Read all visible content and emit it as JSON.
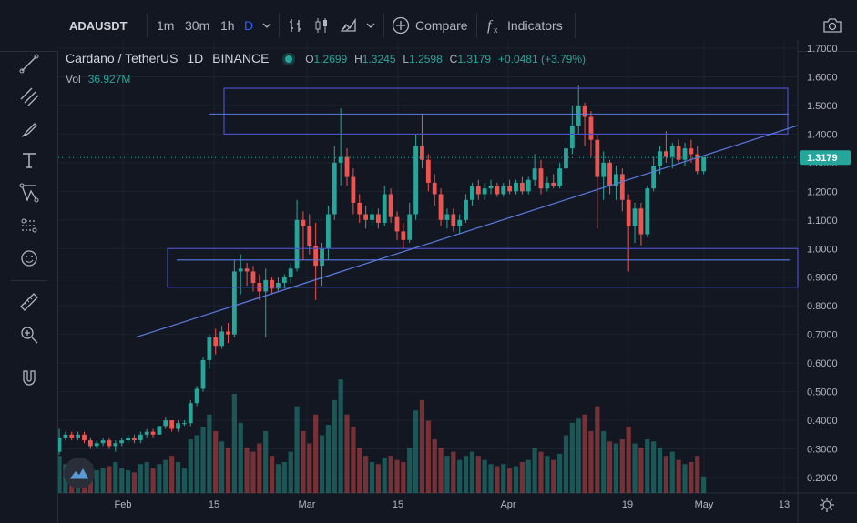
{
  "toolbar": {
    "symbol": "ADAUSDT",
    "timeframes": [
      "1m",
      "30m",
      "1h",
      "D"
    ],
    "active_timeframe": "D",
    "compare_label": "Compare",
    "indicators_label": "Indicators"
  },
  "legend": {
    "title": "Cardano / TetherUS",
    "interval": "1D",
    "exchange": "BINANCE",
    "open_key": "O",
    "open": "1.2699",
    "high_key": "H",
    "high": "1.3245",
    "low_key": "L",
    "low": "1.2598",
    "close_key": "C",
    "close": "1.3179",
    "change": "+0.0481 (+3.79%)",
    "volume_label": "Vol",
    "volume_value": "36.927M"
  },
  "left_tools": [
    "crosshair-icon",
    "trend-line-icon",
    "fib-icon",
    "brush-icon",
    "text-icon",
    "pattern-icon",
    "prediction-icon",
    "emoji-icon",
    "ruler-icon",
    "zoom-icon",
    "magnet-icon"
  ],
  "colors": {
    "background": "#131722",
    "up": "#26a69a",
    "down": "#ef5350",
    "drawing": "#5b7ae0",
    "box": "#4a4fc4"
  },
  "chart_data": {
    "type": "candlestick",
    "y_ticks": [
      "1.7000",
      "1.6000",
      "1.5000",
      "1.4000",
      "1.3000",
      "1.2000",
      "1.1000",
      "1.0000",
      "0.9000",
      "0.8000",
      "0.7000",
      "0.6000",
      "0.5000",
      "0.4000",
      "0.3000",
      "0.2000"
    ],
    "x_ticks": [
      "Feb",
      "15",
      "Mar",
      "15",
      "Apr",
      "19",
      "May",
      "13"
    ],
    "last_price": "1.3179",
    "ylim": [
      0.16,
      1.74
    ],
    "candles": [
      [
        0.29,
        0.37,
        0.28,
        0.34,
        18
      ],
      [
        0.34,
        0.36,
        0.33,
        0.35,
        14
      ],
      [
        0.35,
        0.36,
        0.33,
        0.34,
        13
      ],
      [
        0.34,
        0.36,
        0.33,
        0.35,
        15
      ],
      [
        0.35,
        0.36,
        0.32,
        0.33,
        12
      ],
      [
        0.33,
        0.34,
        0.3,
        0.31,
        14
      ],
      [
        0.31,
        0.33,
        0.3,
        0.32,
        11
      ],
      [
        0.32,
        0.34,
        0.31,
        0.33,
        12
      ],
      [
        0.33,
        0.34,
        0.3,
        0.31,
        13
      ],
      [
        0.31,
        0.33,
        0.29,
        0.32,
        15
      ],
      [
        0.32,
        0.34,
        0.31,
        0.33,
        12
      ],
      [
        0.33,
        0.35,
        0.32,
        0.34,
        11
      ],
      [
        0.34,
        0.35,
        0.32,
        0.33,
        10
      ],
      [
        0.33,
        0.36,
        0.32,
        0.35,
        14
      ],
      [
        0.35,
        0.37,
        0.34,
        0.36,
        15
      ],
      [
        0.36,
        0.37,
        0.34,
        0.35,
        12
      ],
      [
        0.35,
        0.38,
        0.35,
        0.38,
        14
      ],
      [
        0.38,
        0.41,
        0.37,
        0.4,
        16
      ],
      [
        0.4,
        0.4,
        0.36,
        0.37,
        18
      ],
      [
        0.37,
        0.4,
        0.36,
        0.39,
        15
      ],
      [
        0.39,
        0.4,
        0.38,
        0.39,
        12
      ],
      [
        0.39,
        0.47,
        0.38,
        0.46,
        26
      ],
      [
        0.46,
        0.52,
        0.45,
        0.51,
        28
      ],
      [
        0.51,
        0.62,
        0.5,
        0.61,
        32
      ],
      [
        0.61,
        0.7,
        0.58,
        0.69,
        38
      ],
      [
        0.69,
        0.72,
        0.63,
        0.66,
        30
      ],
      [
        0.66,
        0.73,
        0.65,
        0.71,
        25
      ],
      [
        0.71,
        0.74,
        0.67,
        0.7,
        22
      ],
      [
        0.7,
        0.96,
        0.69,
        0.92,
        48
      ],
      [
        0.92,
        0.98,
        0.84,
        0.93,
        34
      ],
      [
        0.93,
        0.95,
        0.87,
        0.92,
        22
      ],
      [
        0.92,
        0.94,
        0.85,
        0.88,
        20
      ],
      [
        0.88,
        0.91,
        0.82,
        0.85,
        24
      ],
      [
        0.85,
        0.93,
        0.69,
        0.89,
        30
      ],
      [
        0.89,
        0.9,
        0.84,
        0.86,
        18
      ],
      [
        0.86,
        0.9,
        0.85,
        0.88,
        14
      ],
      [
        0.88,
        0.91,
        0.86,
        0.9,
        15
      ],
      [
        0.9,
        0.95,
        0.88,
        0.93,
        20
      ],
      [
        0.93,
        1.17,
        0.92,
        1.1,
        42
      ],
      [
        1.1,
        1.13,
        0.96,
        1.08,
        30
      ],
      [
        1.08,
        1.12,
        0.98,
        1.01,
        24
      ],
      [
        1.01,
        1.09,
        0.82,
        0.94,
        38
      ],
      [
        0.94,
        1.02,
        0.87,
        1.0,
        28
      ],
      [
        1.0,
        1.15,
        0.96,
        1.12,
        33
      ],
      [
        1.12,
        1.36,
        1.1,
        1.3,
        45
      ],
      [
        1.3,
        1.49,
        1.22,
        1.32,
        55
      ],
      [
        1.32,
        1.35,
        1.22,
        1.25,
        38
      ],
      [
        1.25,
        1.28,
        1.12,
        1.16,
        32
      ],
      [
        1.16,
        1.19,
        1.09,
        1.12,
        22
      ],
      [
        1.12,
        1.15,
        1.07,
        1.1,
        18
      ],
      [
        1.1,
        1.14,
        1.08,
        1.12,
        15
      ],
      [
        1.12,
        1.14,
        1.07,
        1.09,
        14
      ],
      [
        1.09,
        1.22,
        1.08,
        1.19,
        17
      ],
      [
        1.19,
        1.21,
        1.09,
        1.11,
        18
      ],
      [
        1.11,
        1.13,
        1.03,
        1.06,
        16
      ],
      [
        1.06,
        1.09,
        1.0,
        1.03,
        15
      ],
      [
        1.03,
        1.16,
        1.02,
        1.12,
        22
      ],
      [
        1.12,
        1.4,
        1.1,
        1.36,
        40
      ],
      [
        1.36,
        1.47,
        1.28,
        1.31,
        45
      ],
      [
        1.31,
        1.33,
        1.2,
        1.23,
        35
      ],
      [
        1.23,
        1.26,
        1.15,
        1.19,
        26
      ],
      [
        1.19,
        1.21,
        1.08,
        1.1,
        22
      ],
      [
        1.1,
        1.14,
        1.07,
        1.12,
        18
      ],
      [
        1.12,
        1.14,
        1.06,
        1.08,
        20
      ],
      [
        1.08,
        1.12,
        1.05,
        1.1,
        16
      ],
      [
        1.1,
        1.19,
        1.09,
        1.17,
        18
      ],
      [
        1.17,
        1.23,
        1.15,
        1.22,
        20
      ],
      [
        1.22,
        1.24,
        1.17,
        1.19,
        18
      ],
      [
        1.19,
        1.23,
        1.17,
        1.21,
        16
      ],
      [
        1.21,
        1.24,
        1.19,
        1.22,
        14
      ],
      [
        1.22,
        1.23,
        1.18,
        1.19,
        13
      ],
      [
        1.19,
        1.23,
        1.18,
        1.22,
        14
      ],
      [
        1.22,
        1.24,
        1.19,
        1.2,
        12
      ],
      [
        1.2,
        1.24,
        1.19,
        1.23,
        13
      ],
      [
        1.23,
        1.25,
        1.19,
        1.2,
        15
      ],
      [
        1.2,
        1.25,
        1.19,
        1.24,
        16
      ],
      [
        1.24,
        1.33,
        1.22,
        1.28,
        22
      ],
      [
        1.28,
        1.31,
        1.19,
        1.21,
        20
      ],
      [
        1.21,
        1.25,
        1.2,
        1.23,
        18
      ],
      [
        1.23,
        1.26,
        1.21,
        1.22,
        16
      ],
      [
        1.22,
        1.3,
        1.21,
        1.28,
        19
      ],
      [
        1.28,
        1.38,
        1.27,
        1.35,
        28
      ],
      [
        1.35,
        1.5,
        1.33,
        1.43,
        34
      ],
      [
        1.43,
        1.57,
        1.4,
        1.5,
        36
      ],
      [
        1.5,
        1.51,
        1.36,
        1.46,
        38
      ],
      [
        1.46,
        1.48,
        1.32,
        1.38,
        30
      ],
      [
        1.38,
        1.4,
        1.07,
        1.25,
        42
      ],
      [
        1.25,
        1.34,
        1.17,
        1.3,
        30
      ],
      [
        1.3,
        1.31,
        1.19,
        1.22,
        25
      ],
      [
        1.22,
        1.29,
        1.17,
        1.26,
        24
      ],
      [
        1.26,
        1.28,
        1.13,
        1.17,
        26
      ],
      [
        1.17,
        1.19,
        0.92,
        1.08,
        32
      ],
      [
        1.08,
        1.16,
        1.02,
        1.14,
        24
      ],
      [
        1.14,
        1.16,
        1.01,
        1.05,
        22
      ],
      [
        1.05,
        1.22,
        1.04,
        1.21,
        26
      ],
      [
        1.21,
        1.32,
        1.2,
        1.29,
        25
      ],
      [
        1.29,
        1.36,
        1.26,
        1.34,
        22
      ],
      [
        1.34,
        1.41,
        1.3,
        1.32,
        18
      ],
      [
        1.32,
        1.37,
        1.28,
        1.36,
        20
      ],
      [
        1.36,
        1.38,
        1.3,
        1.31,
        16
      ],
      [
        1.31,
        1.37,
        1.29,
        1.35,
        14
      ],
      [
        1.35,
        1.38,
        1.3,
        1.33,
        15
      ],
      [
        1.33,
        1.36,
        1.26,
        1.27,
        18
      ],
      [
        1.27,
        1.32,
        1.26,
        1.32,
        8
      ]
    ]
  }
}
